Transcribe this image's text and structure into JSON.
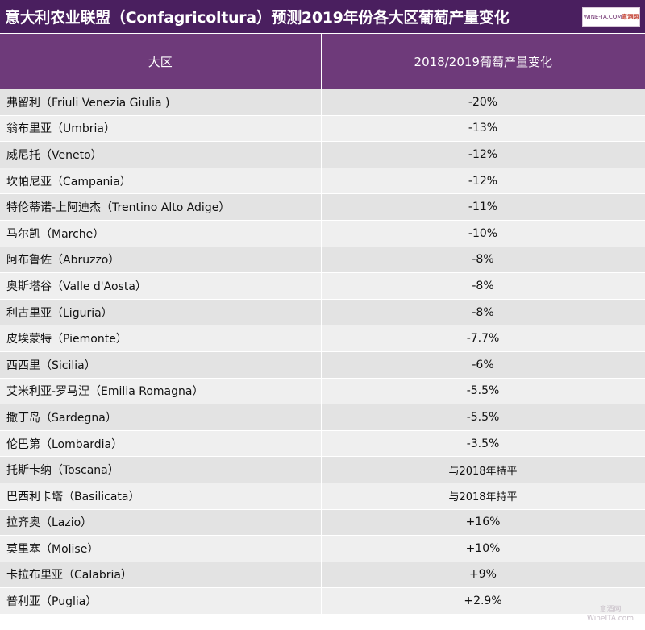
{
  "title": "意大利农业联盟（Confagricoltura）预测2019年份各大区葡萄产量变化",
  "logo": {
    "en": "WINE-TA.COM",
    "cn": "意酒网"
  },
  "watermark": {
    "cn": "意酒网",
    "en": "WineITA.com"
  },
  "colors": {
    "title_bg": "#4a1f5f",
    "header_bg": "#6e3a7a",
    "row_a": "#e3e3e3",
    "row_b": "#efefef"
  },
  "chart_data": {
    "type": "table",
    "columns": [
      "大区",
      "2018/2019葡萄产量变化"
    ],
    "rows": [
      {
        "region": "弗留利（Friuli Venezia Giulia )",
        "change": "-20%"
      },
      {
        "region": "翁布里亚（Umbria）",
        "change": "-13%"
      },
      {
        "region": "威尼托（Veneto）",
        "change": "-12%"
      },
      {
        "region": "坎帕尼亚（Campania）",
        "change": "-12%"
      },
      {
        "region": "特伦蒂诺-上阿迪杰（Trentino Alto Adige）",
        "change": "-11%"
      },
      {
        "region": "马尔凯（Marche）",
        "change": "-10%"
      },
      {
        "region": "阿布鲁佐（Abruzzo）",
        "change": "-8%"
      },
      {
        "region": "奥斯塔谷（Valle d'Aosta）",
        "change": "-8%"
      },
      {
        "region": "利古里亚（Liguria）",
        "change": "-8%"
      },
      {
        "region": "皮埃蒙特（Piemonte）",
        "change": "-7.7%"
      },
      {
        "region": "西西里（Sicilia）",
        "change": "-6%"
      },
      {
        "region": "艾米利亚-罗马涅（Emilia Romagna）",
        "change": "-5.5%"
      },
      {
        "region": "撒丁岛（Sardegna）",
        "change": "-5.5%"
      },
      {
        "region": "伦巴第（Lombardia）",
        "change": "-3.5%"
      },
      {
        "region": "托斯卡纳（Toscana）",
        "change": "与2018年持平"
      },
      {
        "region": "巴西利卡塔（Basilicata）",
        "change": "与2018年持平"
      },
      {
        "region": "拉齐奥（Lazio）",
        "change": "+16%"
      },
      {
        "region": "莫里塞（Molise）",
        "change": "+10%"
      },
      {
        "region": "卡拉布里亚（Calabria）",
        "change": "+9%"
      },
      {
        "region": "普利亚（Puglia）",
        "change": "+2.9%"
      }
    ]
  }
}
